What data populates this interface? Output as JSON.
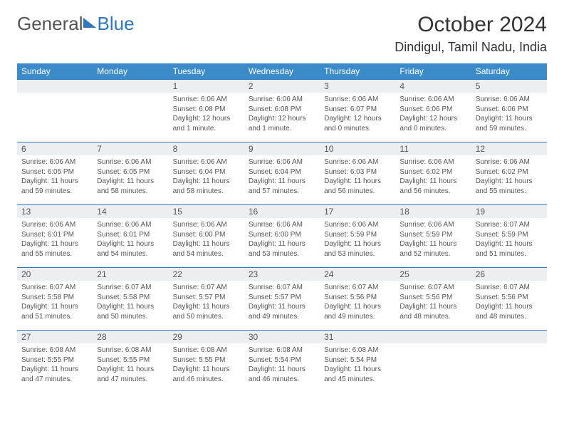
{
  "brand": {
    "text1": "General",
    "text2": "Blue"
  },
  "title": "October 2024",
  "location": "Dindigul, Tamil Nadu, India",
  "colors": {
    "header_bg": "#3b8bc9",
    "border": "#2f78bf",
    "daynum_bg": "#eceff1",
    "text": "#555555"
  },
  "day_headers": [
    "Sunday",
    "Monday",
    "Tuesday",
    "Wednesday",
    "Thursday",
    "Friday",
    "Saturday"
  ],
  "weeks": [
    [
      null,
      null,
      {
        "n": "1",
        "sr": "Sunrise: 6:06 AM",
        "ss": "Sunset: 6:08 PM",
        "dl": "Daylight: 12 hours and 1 minute."
      },
      {
        "n": "2",
        "sr": "Sunrise: 6:06 AM",
        "ss": "Sunset: 6:08 PM",
        "dl": "Daylight: 12 hours and 1 minute."
      },
      {
        "n": "3",
        "sr": "Sunrise: 6:06 AM",
        "ss": "Sunset: 6:07 PM",
        "dl": "Daylight: 12 hours and 0 minutes."
      },
      {
        "n": "4",
        "sr": "Sunrise: 6:06 AM",
        "ss": "Sunset: 6:06 PM",
        "dl": "Daylight: 12 hours and 0 minutes."
      },
      {
        "n": "5",
        "sr": "Sunrise: 6:06 AM",
        "ss": "Sunset: 6:06 PM",
        "dl": "Daylight: 11 hours and 59 minutes."
      }
    ],
    [
      {
        "n": "6",
        "sr": "Sunrise: 6:06 AM",
        "ss": "Sunset: 6:05 PM",
        "dl": "Daylight: 11 hours and 59 minutes."
      },
      {
        "n": "7",
        "sr": "Sunrise: 6:06 AM",
        "ss": "Sunset: 6:05 PM",
        "dl": "Daylight: 11 hours and 58 minutes."
      },
      {
        "n": "8",
        "sr": "Sunrise: 6:06 AM",
        "ss": "Sunset: 6:04 PM",
        "dl": "Daylight: 11 hours and 58 minutes."
      },
      {
        "n": "9",
        "sr": "Sunrise: 6:06 AM",
        "ss": "Sunset: 6:04 PM",
        "dl": "Daylight: 11 hours and 57 minutes."
      },
      {
        "n": "10",
        "sr": "Sunrise: 6:06 AM",
        "ss": "Sunset: 6:03 PM",
        "dl": "Daylight: 11 hours and 56 minutes."
      },
      {
        "n": "11",
        "sr": "Sunrise: 6:06 AM",
        "ss": "Sunset: 6:02 PM",
        "dl": "Daylight: 11 hours and 56 minutes."
      },
      {
        "n": "12",
        "sr": "Sunrise: 6:06 AM",
        "ss": "Sunset: 6:02 PM",
        "dl": "Daylight: 11 hours and 55 minutes."
      }
    ],
    [
      {
        "n": "13",
        "sr": "Sunrise: 6:06 AM",
        "ss": "Sunset: 6:01 PM",
        "dl": "Daylight: 11 hours and 55 minutes."
      },
      {
        "n": "14",
        "sr": "Sunrise: 6:06 AM",
        "ss": "Sunset: 6:01 PM",
        "dl": "Daylight: 11 hours and 54 minutes."
      },
      {
        "n": "15",
        "sr": "Sunrise: 6:06 AM",
        "ss": "Sunset: 6:00 PM",
        "dl": "Daylight: 11 hours and 54 minutes."
      },
      {
        "n": "16",
        "sr": "Sunrise: 6:06 AM",
        "ss": "Sunset: 6:00 PM",
        "dl": "Daylight: 11 hours and 53 minutes."
      },
      {
        "n": "17",
        "sr": "Sunrise: 6:06 AM",
        "ss": "Sunset: 5:59 PM",
        "dl": "Daylight: 11 hours and 53 minutes."
      },
      {
        "n": "18",
        "sr": "Sunrise: 6:06 AM",
        "ss": "Sunset: 5:59 PM",
        "dl": "Daylight: 11 hours and 52 minutes."
      },
      {
        "n": "19",
        "sr": "Sunrise: 6:07 AM",
        "ss": "Sunset: 5:59 PM",
        "dl": "Daylight: 11 hours and 51 minutes."
      }
    ],
    [
      {
        "n": "20",
        "sr": "Sunrise: 6:07 AM",
        "ss": "Sunset: 5:58 PM",
        "dl": "Daylight: 11 hours and 51 minutes."
      },
      {
        "n": "21",
        "sr": "Sunrise: 6:07 AM",
        "ss": "Sunset: 5:58 PM",
        "dl": "Daylight: 11 hours and 50 minutes."
      },
      {
        "n": "22",
        "sr": "Sunrise: 6:07 AM",
        "ss": "Sunset: 5:57 PM",
        "dl": "Daylight: 11 hours and 50 minutes."
      },
      {
        "n": "23",
        "sr": "Sunrise: 6:07 AM",
        "ss": "Sunset: 5:57 PM",
        "dl": "Daylight: 11 hours and 49 minutes."
      },
      {
        "n": "24",
        "sr": "Sunrise: 6:07 AM",
        "ss": "Sunset: 5:56 PM",
        "dl": "Daylight: 11 hours and 49 minutes."
      },
      {
        "n": "25",
        "sr": "Sunrise: 6:07 AM",
        "ss": "Sunset: 5:56 PM",
        "dl": "Daylight: 11 hours and 48 minutes."
      },
      {
        "n": "26",
        "sr": "Sunrise: 6:07 AM",
        "ss": "Sunset: 5:56 PM",
        "dl": "Daylight: 11 hours and 48 minutes."
      }
    ],
    [
      {
        "n": "27",
        "sr": "Sunrise: 6:08 AM",
        "ss": "Sunset: 5:55 PM",
        "dl": "Daylight: 11 hours and 47 minutes."
      },
      {
        "n": "28",
        "sr": "Sunrise: 6:08 AM",
        "ss": "Sunset: 5:55 PM",
        "dl": "Daylight: 11 hours and 47 minutes."
      },
      {
        "n": "29",
        "sr": "Sunrise: 6:08 AM",
        "ss": "Sunset: 5:55 PM",
        "dl": "Daylight: 11 hours and 46 minutes."
      },
      {
        "n": "30",
        "sr": "Sunrise: 6:08 AM",
        "ss": "Sunset: 5:54 PM",
        "dl": "Daylight: 11 hours and 46 minutes."
      },
      {
        "n": "31",
        "sr": "Sunrise: 6:08 AM",
        "ss": "Sunset: 5:54 PM",
        "dl": "Daylight: 11 hours and 45 minutes."
      },
      null,
      null
    ]
  ]
}
